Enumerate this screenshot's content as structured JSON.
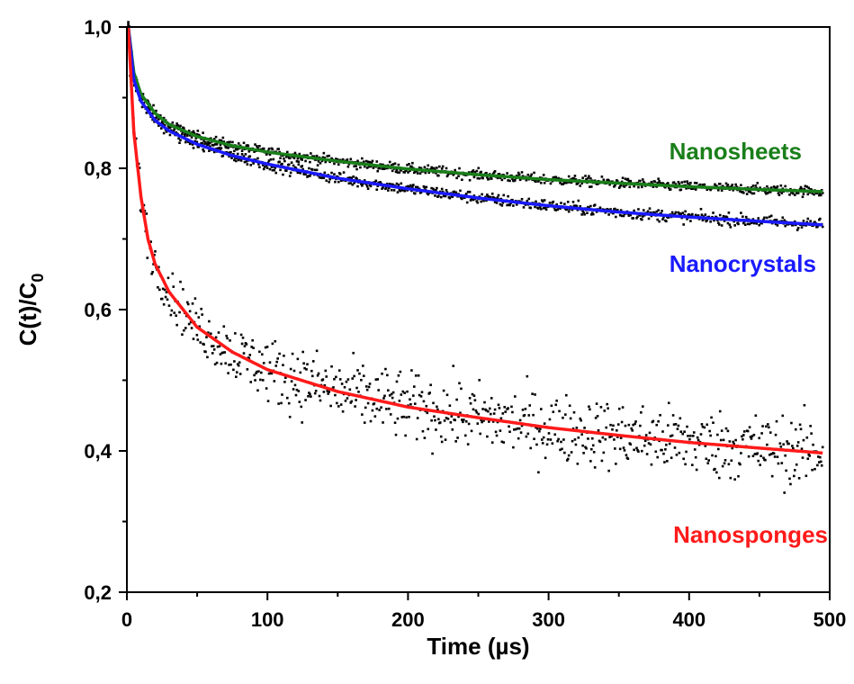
{
  "chart_data": {
    "type": "scatter",
    "xlabel": "Time (µs)",
    "ylabel": {
      "main": "C(t)/C",
      "subscript": "0"
    },
    "xlim": [
      0,
      500
    ],
    "ylim": [
      0.2,
      1.0
    ],
    "x_ticks": [
      {
        "value": 0,
        "label": "0"
      },
      {
        "value": 100,
        "label": "100"
      },
      {
        "value": 200,
        "label": "200"
      },
      {
        "value": 300,
        "label": "300"
      },
      {
        "value": 400,
        "label": "400"
      },
      {
        "value": 500,
        "label": "500"
      }
    ],
    "y_ticks": [
      {
        "value": 0.2,
        "label": "0,2"
      },
      {
        "value": 0.4,
        "label": "0,4"
      },
      {
        "value": 0.6,
        "label": "0,6"
      },
      {
        "value": 0.8,
        "label": "0,8"
      },
      {
        "value": 1.0,
        "label": "1,0"
      }
    ],
    "grid": false,
    "data_point_color": "#000000",
    "series": [
      {
        "name": "Nanosheets",
        "color": "#1a7f1a",
        "label_position": "upper-right",
        "fit": [
          [
            1,
            1.0
          ],
          [
            5,
            0.935
          ],
          [
            10,
            0.905
          ],
          [
            20,
            0.878
          ],
          [
            30,
            0.862
          ],
          [
            50,
            0.845
          ],
          [
            75,
            0.832
          ],
          [
            100,
            0.823
          ],
          [
            150,
            0.81
          ],
          [
            200,
            0.799
          ],
          [
            250,
            0.791
          ],
          [
            300,
            0.784
          ],
          [
            350,
            0.779
          ],
          [
            400,
            0.774
          ],
          [
            450,
            0.77
          ],
          [
            495,
            0.767
          ]
        ],
        "noise": 0.006
      },
      {
        "name": "Nanocrystals",
        "color": "#1a1aff",
        "label_position": "right",
        "fit": [
          [
            1,
            1.0
          ],
          [
            5,
            0.925
          ],
          [
            10,
            0.895
          ],
          [
            20,
            0.868
          ],
          [
            30,
            0.853
          ],
          [
            50,
            0.834
          ],
          [
            75,
            0.818
          ],
          [
            100,
            0.806
          ],
          [
            150,
            0.786
          ],
          [
            200,
            0.771
          ],
          [
            250,
            0.758
          ],
          [
            300,
            0.747
          ],
          [
            350,
            0.738
          ],
          [
            400,
            0.731
          ],
          [
            450,
            0.725
          ],
          [
            495,
            0.72
          ]
        ],
        "noise": 0.007
      },
      {
        "name": "Nanosponges",
        "color": "#ff1a1a",
        "label_position": "lower-right",
        "fit": [
          [
            1,
            1.0
          ],
          [
            5,
            0.85
          ],
          [
            10,
            0.76
          ],
          [
            15,
            0.7
          ],
          [
            20,
            0.665
          ],
          [
            30,
            0.625
          ],
          [
            50,
            0.575
          ],
          [
            75,
            0.54
          ],
          [
            100,
            0.515
          ],
          [
            150,
            0.484
          ],
          [
            200,
            0.462
          ],
          [
            250,
            0.447
          ],
          [
            300,
            0.433
          ],
          [
            350,
            0.422
          ],
          [
            400,
            0.412
          ],
          [
            450,
            0.404
          ],
          [
            495,
            0.397
          ]
        ],
        "noise": 0.04
      }
    ]
  }
}
